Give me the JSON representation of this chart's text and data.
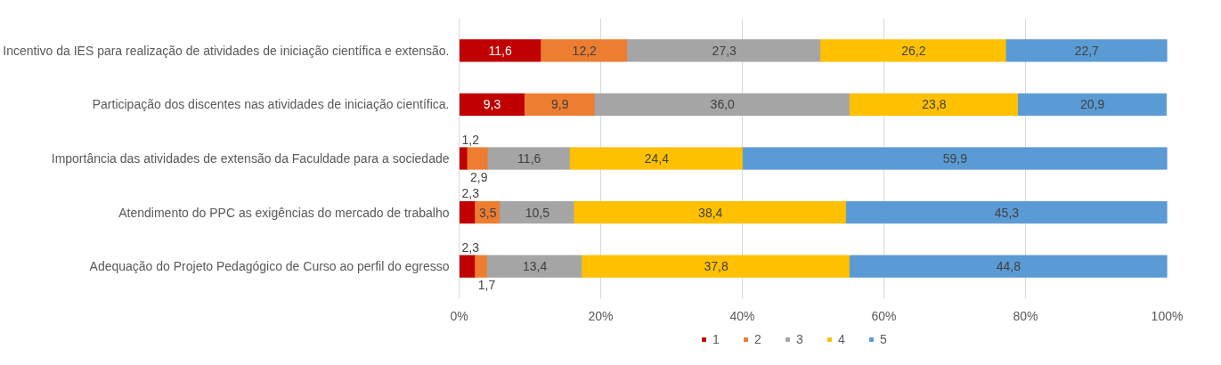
{
  "chart_data": {
    "type": "bar",
    "orientation": "horizontal",
    "stacked": true,
    "categories": [
      "Incentivo da IES para realização de atividades de iniciação científica e extensão.",
      "Participação dos discentes nas atividades de iniciação científica.",
      "Importância das atividades de extensão da Faculdade para a sociedade",
      "Atendimento do PPC as exigências do mercado de trabalho",
      "Adequação do Projeto Pedagógico de Curso ao perfil do egresso"
    ],
    "series": [
      {
        "name": "1",
        "color": "#c00000",
        "values": [
          11.6,
          9.3,
          1.2,
          2.3,
          2.3
        ],
        "value_labels": [
          "11,6",
          "9,3",
          "1,2",
          "2,3",
          "2,3"
        ]
      },
      {
        "name": "2",
        "color": "#ed7d31",
        "values": [
          12.2,
          9.9,
          2.9,
          3.5,
          1.7
        ],
        "value_labels": [
          "12,2",
          "9,9",
          "2,9",
          "3,5",
          "1,7"
        ]
      },
      {
        "name": "3",
        "color": "#a5a5a5",
        "values": [
          27.3,
          36.0,
          11.6,
          10.5,
          13.4
        ],
        "value_labels": [
          "27,3",
          "36,0",
          "11,6",
          "10,5",
          "13,4"
        ]
      },
      {
        "name": "4",
        "color": "#ffc000",
        "values": [
          26.2,
          23.8,
          24.4,
          38.4,
          37.8
        ],
        "value_labels": [
          "26,2",
          "23,8",
          "24,4",
          "38,4",
          "37,8"
        ]
      },
      {
        "name": "5",
        "color": "#5b9bd5",
        "values": [
          22.7,
          20.9,
          59.9,
          45.3,
          44.8
        ],
        "value_labels": [
          "22,7",
          "20,9",
          "59,9",
          "45,3",
          "44,8"
        ]
      }
    ],
    "xlim": [
      0,
      100
    ],
    "xticks": [
      {
        "value": 0,
        "label": "0%"
      },
      {
        "value": 20,
        "label": "20%"
      },
      {
        "value": 40,
        "label": "40%"
      },
      {
        "value": 60,
        "label": "60%"
      },
      {
        "value": 80,
        "label": "80%"
      },
      {
        "value": 100,
        "label": "100%"
      }
    ],
    "grid": "x",
    "legend": "bottom left"
  }
}
